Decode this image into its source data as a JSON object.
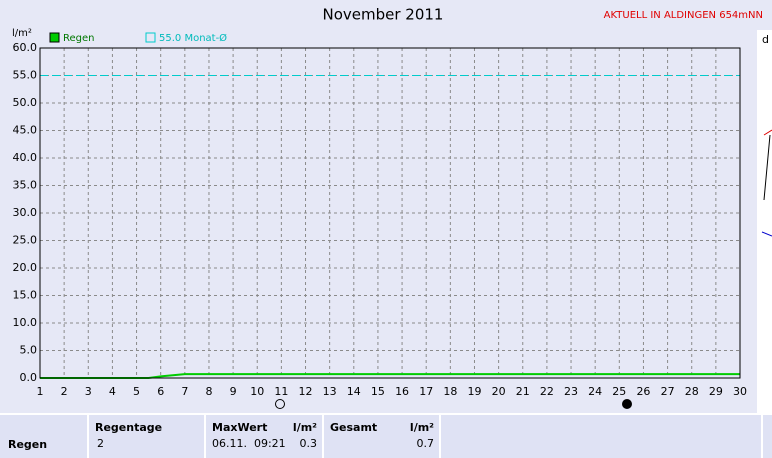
{
  "chart_data": {
    "type": "line",
    "title": "November 2011",
    "subtitle": "AKTUELL IN ALDINGEN 654mNN",
    "y_label": "l/m²",
    "x": [
      1,
      5.5,
      6,
      7,
      30
    ],
    "series": [
      {
        "name": "Regen",
        "color": "#00cc00",
        "values": [
          0,
          0,
          0.3,
          0.7,
          0.7
        ]
      }
    ],
    "reference": {
      "name": "55.0 Monat-Ø",
      "value": 55,
      "color": "#00cccc"
    },
    "xlim": [
      1,
      30
    ],
    "xticks": [
      1,
      2,
      3,
      4,
      5,
      6,
      7,
      8,
      9,
      10,
      11,
      12,
      13,
      14,
      15,
      16,
      17,
      18,
      19,
      20,
      21,
      22,
      23,
      24,
      25,
      26,
      27,
      28,
      29,
      30
    ],
    "ylim": [
      0,
      60
    ],
    "yticks": [
      {
        "value": 0,
        "label": "0.0"
      },
      {
        "value": 5,
        "label": "5.0"
      },
      {
        "value": 10,
        "label": "10.0"
      },
      {
        "value": 15,
        "label": "15.0"
      },
      {
        "value": 20,
        "label": "20.0"
      },
      {
        "value": 25,
        "label": "25.0"
      },
      {
        "value": 30,
        "label": "30.0"
      },
      {
        "value": 35,
        "label": "35.0"
      },
      {
        "value": 40,
        "label": "40.0"
      },
      {
        "value": 45,
        "label": "45.0"
      },
      {
        "value": 50,
        "label": "50.0"
      },
      {
        "value": 55,
        "label": "55.0"
      },
      {
        "value": 60,
        "label": "60.0"
      }
    ],
    "grid": true
  },
  "side_label": "d",
  "stats": {
    "row_label": "Regen",
    "columns": [
      {
        "header": "Regentage",
        "value": 2
      },
      {
        "header": "MaxWert",
        "unit": "l/m²",
        "date": "06.11.  09:21",
        "value": 0.3
      },
      {
        "header": "Gesamt",
        "unit": "l/m²",
        "value": 0.7
      }
    ]
  }
}
